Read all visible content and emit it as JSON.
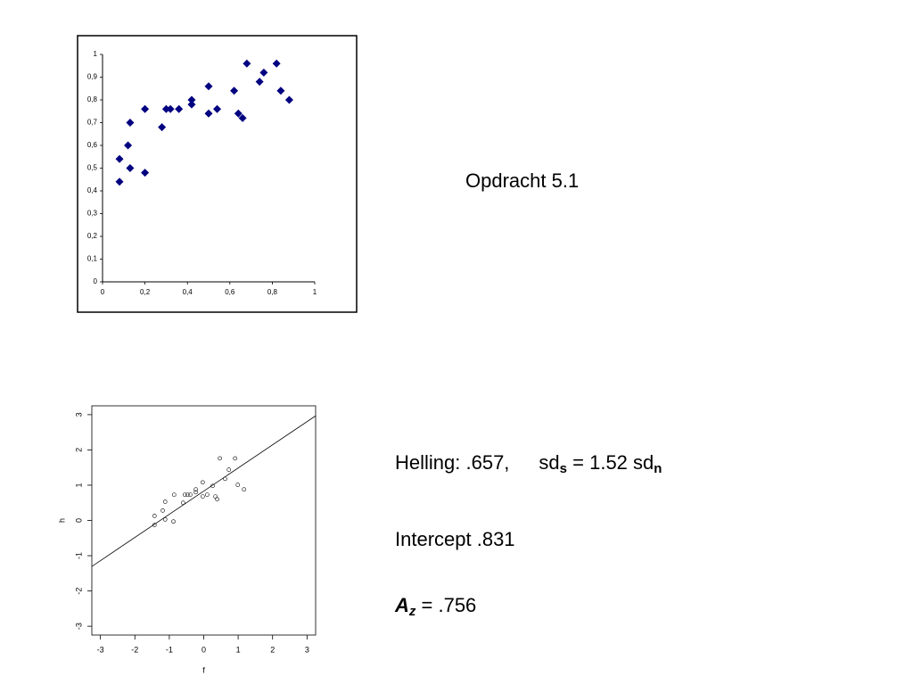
{
  "chart_data": [
    {
      "type": "scatter",
      "x": [
        0.08,
        0.08,
        0.12,
        0.13,
        0.13,
        0.2,
        0.2,
        0.28,
        0.3,
        0.32,
        0.36,
        0.42,
        0.42,
        0.5,
        0.5,
        0.54,
        0.62,
        0.64,
        0.66,
        0.68,
        0.74,
        0.76,
        0.82,
        0.84,
        0.88
      ],
      "y": [
        0.44,
        0.54,
        0.6,
        0.7,
        0.5,
        0.76,
        0.48,
        0.68,
        0.76,
        0.76,
        0.76,
        0.8,
        0.78,
        0.86,
        0.74,
        0.76,
        0.84,
        0.74,
        0.72,
        0.96,
        0.88,
        0.92,
        0.96,
        0.84,
        0.8
      ],
      "color": "#000080",
      "marker": "diamond",
      "xlim": [
        0,
        1
      ],
      "xticks": [
        0,
        {
          "value": 0.2,
          "label": "0,2"
        },
        {
          "value": 0.4,
          "label": "0,4"
        },
        {
          "value": 0.6,
          "label": "0,6"
        },
        {
          "value": 0.8,
          "label": "0,8"
        },
        1
      ],
      "ylim": [
        0,
        1
      ],
      "yticks": [
        0,
        {
          "value": 0.1,
          "label": "0,1"
        },
        {
          "value": 0.2,
          "label": "0,2"
        },
        {
          "value": 0.3,
          "label": "0,3"
        },
        {
          "value": 0.4,
          "label": "0,4"
        },
        {
          "value": 0.5,
          "label": "0,5"
        },
        {
          "value": 0.6,
          "label": "0,6"
        },
        {
          "value": 0.7,
          "label": "0,7"
        },
        {
          "value": 0.8,
          "label": "0,8"
        },
        {
          "value": 0.9,
          "label": "0,9"
        },
        1
      ],
      "grid": false
    },
    {
      "type": "scatter",
      "x": [
        -1.43,
        -1.43,
        -1.19,
        -1.12,
        -1.12,
        -0.86,
        -0.88,
        -0.6,
        -0.55,
        -0.47,
        -0.39,
        -0.23,
        -0.23,
        -0.03,
        -0.03,
        0.1,
        0.26,
        0.34,
        0.39,
        0.47,
        0.62,
        0.73,
        0.91,
        0.99,
        1.17
      ],
      "y": [
        0.13,
        -0.13,
        0.28,
        0.53,
        0.03,
        0.73,
        -0.03,
        0.5,
        0.73,
        0.73,
        0.73,
        0.8,
        0.88,
        0.68,
        1.08,
        0.73,
        0.98,
        0.68,
        0.6,
        1.76,
        1.18,
        1.44,
        1.76,
        1.01,
        0.88
      ],
      "color": "#000000",
      "marker": "open-circle",
      "line": {
        "x": [
          -3.25,
          3.25
        ],
        "y": [
          -1.304,
          2.966
        ],
        "color": "#000000"
      },
      "x_label": "f",
      "y_label": "h",
      "xlim": [
        -3.25,
        3.25
      ],
      "xticks": [
        -3,
        -2,
        -1,
        0,
        1,
        2,
        3
      ],
      "ylim": [
        -3.25,
        3.25
      ],
      "yticks": [
        -3,
        -2,
        -1,
        0,
        1,
        2,
        3
      ],
      "grid": false
    }
  ],
  "slide": {
    "heading": "Opdracht 5.1",
    "slope": "Helling: .657,",
    "sd_a": "sd",
    "sd_a_sub": "s",
    "sd_b": "= 1.52 sd",
    "sd_b_sub": "n",
    "intercept": "Intercept .831",
    "az": "A",
    "az_sub": "z",
    "az_value": "= .756"
  }
}
